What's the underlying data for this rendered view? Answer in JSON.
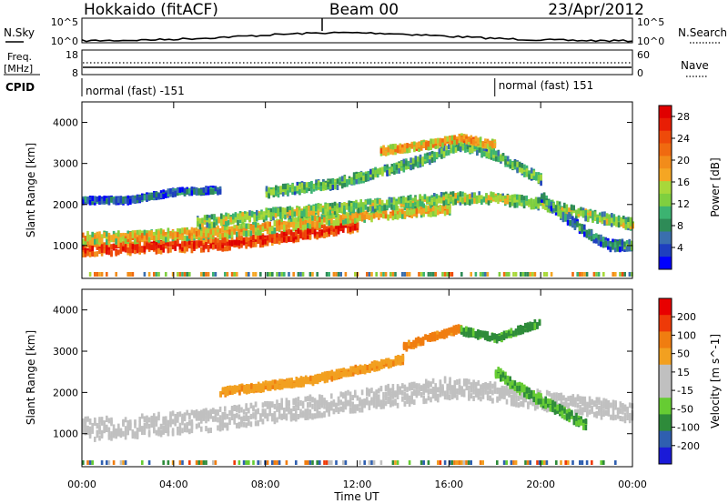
{
  "header": {
    "station": "Hokkaido (fitACF)",
    "beam": "Beam 00",
    "date": "23/Apr/2012"
  },
  "nsky_panel": {
    "left_label": "N.Sky",
    "right_label": "N.Search",
    "left_ticks": [
      "10^5",
      "10^0"
    ],
    "right_ticks": [
      "10^5",
      "10^0"
    ]
  },
  "freq_panel": {
    "label_top": "Freq.",
    "label_unit": "[MHz]",
    "left_ticks": [
      "18",
      "8"
    ],
    "right_ticks": [
      "60",
      "0"
    ],
    "right_label": "Nave"
  },
  "cpid_panel": {
    "label": "CPID",
    "segments": [
      {
        "text": "normal (fast) -151",
        "start_hour": 0
      },
      {
        "text": "normal (fast) 151",
        "start_hour": 18
      }
    ]
  },
  "chart_data": [
    {
      "type": "heatmap",
      "name": "power",
      "ylabel": "Slant Range [km]",
      "xlabel": "Time UT",
      "xlim_hours": [
        0,
        24
      ],
      "ylim": [
        200,
        4500
      ],
      "y_ticks": [
        1000,
        2000,
        3000,
        4000
      ],
      "x_tick_labels": [
        "00:00",
        "04:00",
        "08:00",
        "12:00",
        "16:00",
        "20:00",
        "00:00"
      ],
      "x_tick_hours": [
        0,
        4,
        8,
        12,
        16,
        20,
        24
      ],
      "colorbar": {
        "label": "Power [dB]",
        "range": [
          0,
          30
        ],
        "tick_values": [
          4,
          8,
          12,
          16,
          20,
          24,
          28
        ],
        "tick_labels": [
          "4",
          "8",
          "12",
          "16",
          "20",
          "24",
          "28"
        ],
        "colors": [
          "#0000ff",
          "#1e3fbf",
          "#3a6fae",
          "#2e8b57",
          "#3cb371",
          "#7fcf3f",
          "#a8d83a",
          "#f5a623",
          "#f28c1a",
          "#f06a10",
          "#ee4a0a",
          "#e81e05",
          "#e00000"
        ]
      },
      "bands": [
        {
          "hours": [
            0,
            2,
            4,
            6,
            8,
            10,
            12
          ],
          "ranges": [
            900,
            930,
            1000,
            1030,
            1150,
            1320,
            1500
          ],
          "width": 260,
          "level": 27
        },
        {
          "hours": [
            0,
            2,
            4,
            6,
            8,
            10,
            12,
            14,
            16
          ],
          "ranges": [
            1180,
            1200,
            1260,
            1320,
            1440,
            1580,
            1720,
            1820,
            1900
          ],
          "width": 230,
          "level": 18
        },
        {
          "hours": [
            5,
            8,
            11,
            14,
            16,
            18,
            20,
            22,
            24
          ],
          "ranges": [
            1550,
            1750,
            1900,
            2050,
            2150,
            2150,
            2000,
            1750,
            1500
          ],
          "width": 220,
          "level": 14
        },
        {
          "hours": [
            8,
            11,
            13,
            15,
            16.5,
            18,
            20
          ],
          "ranges": [
            2300,
            2500,
            2800,
            3100,
            3450,
            3200,
            2600
          ],
          "width": 200,
          "level": 12
        },
        {
          "hours": [
            13,
            15,
            16.5,
            18
          ],
          "ranges": [
            3300,
            3450,
            3600,
            3450
          ],
          "width": 150,
          "level": 20
        },
        {
          "hours": [
            0,
            2,
            4,
            6
          ],
          "ranges": [
            2100,
            2100,
            2300,
            2350
          ],
          "width": 110,
          "level": 6
        },
        {
          "hours": [
            20,
            21,
            22,
            23,
            24
          ],
          "ranges": [
            2200,
            1700,
            1300,
            1000,
            1000
          ],
          "width": 200,
          "level": 9
        }
      ]
    },
    {
      "type": "heatmap",
      "name": "velocity",
      "ylabel": "Slant Range [km]",
      "xlabel": "Time UT",
      "xlim_hours": [
        0,
        24
      ],
      "ylim": [
        200,
        4500
      ],
      "y_ticks": [
        1000,
        2000,
        3000,
        4000
      ],
      "x_tick_labels": [
        "00:00",
        "04:00",
        "08:00",
        "12:00",
        "16:00",
        "20:00",
        "00:00"
      ],
      "x_tick_hours": [
        0,
        4,
        8,
        12,
        16,
        20,
        24
      ],
      "colorbar": {
        "label": "Velocity [m s^-1]",
        "tick_labels": [
          "200",
          "100",
          "50",
          "15",
          "-15",
          "-50",
          "-100",
          "-200"
        ],
        "colors": [
          "#1a1ad8",
          "#2f5fb0",
          "#2e8b3a",
          "#66cc33",
          "#c0c0c0",
          "#c0c0c0",
          "#f2a020",
          "#f07d10",
          "#ee3a08",
          "#e80000"
        ]
      },
      "bands": [
        {
          "hours": [
            0,
            2,
            4,
            6,
            8,
            10,
            12,
            14,
            16
          ],
          "ranges": [
            1100,
            1150,
            1250,
            1350,
            1500,
            1650,
            1800,
            1950,
            2100
          ],
          "width": 500,
          "level": 0
        },
        {
          "hours": [
            16,
            18,
            20,
            22,
            24
          ],
          "ranges": [
            2100,
            2000,
            1800,
            1650,
            1500
          ],
          "width": 420,
          "level": 0
        },
        {
          "hours": [
            6,
            8,
            10,
            12,
            14
          ],
          "ranges": [
            2000,
            2150,
            2300,
            2550,
            2800
          ],
          "width": 160,
          "level": -40
        },
        {
          "hours": [
            14,
            15,
            16.5
          ],
          "ranges": [
            3100,
            3300,
            3550
          ],
          "width": 140,
          "level": -60
        },
        {
          "hours": [
            18,
            19,
            20,
            21,
            22
          ],
          "ranges": [
            2500,
            2100,
            1800,
            1500,
            1200
          ],
          "width": 220,
          "level": 30
        },
        {
          "hours": [
            16.5,
            18,
            20
          ],
          "ranges": [
            3500,
            3300,
            3700
          ],
          "width": 140,
          "level": 40
        }
      ]
    }
  ]
}
